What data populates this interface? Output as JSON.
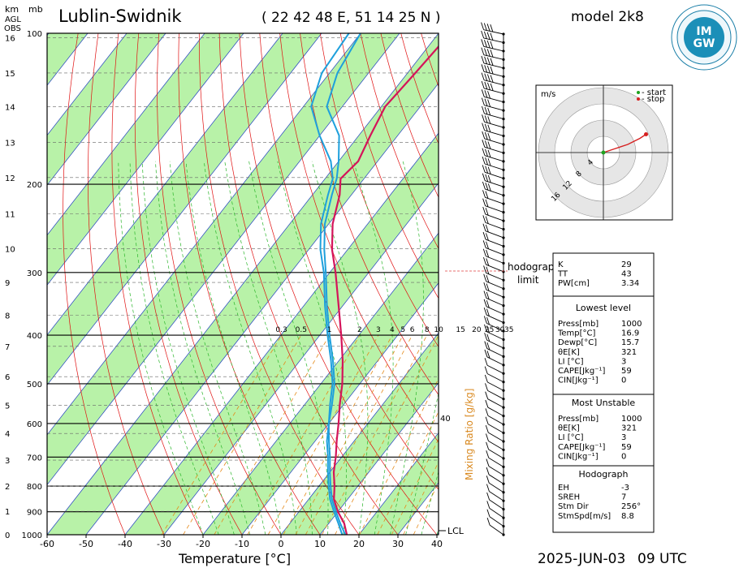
{
  "header": {
    "station": "Lublin-Swidnik",
    "coords": "( 22 42 48 E, 51 14 25 N )",
    "model": "model 2k8",
    "logo_text": "IMGW",
    "logo_ring": "INSTYTUT METEOROLOGII I GOSPODARKI WODNEJ · PAŃSTWOWY INSTYTUT BADAWCZY"
  },
  "axis_heads": {
    "km": "km",
    "mb": "mb",
    "agl": "AGL",
    "obs": "OBS"
  },
  "footer": {
    "date": "2025-JUN-03",
    "time": "09 UTC"
  },
  "chart_data": {
    "type": "line",
    "title": "Lublin-Swidnik",
    "xlabel": "Temperature [°C]",
    "ylabel_left": "km AGL OBS / mb",
    "x_ticks": [
      "-60",
      "-50",
      "-40",
      "-30",
      "-20",
      "-10",
      "0",
      "10",
      "20",
      "30",
      "40"
    ],
    "p_labels": [
      "100",
      "200",
      "300",
      "400",
      "500",
      "600",
      "700",
      "800",
      "900",
      "1000"
    ],
    "km_labels": [
      "0",
      "1",
      "2",
      "3",
      "4",
      "5",
      "6",
      "7",
      "8",
      "9",
      "10",
      "11",
      "12",
      "13",
      "14",
      "15",
      "16"
    ],
    "mixing_ratio_labels": [
      "0.3",
      "0.5",
      "1",
      "2",
      "3",
      "4",
      "5",
      "6",
      "8",
      "10",
      "15",
      "20",
      "25",
      "30",
      "35"
    ],
    "mixing_ratio_title": "Mixing Ratio [g/kg]",
    "right_mark": "40",
    "lcl_label": "LCL",
    "hodograph_limit_label": "hodograph\nlimit",
    "series": [
      {
        "name": "",
        "color": "#d4145a",
        "points": [
          [
            16.9,
            1000
          ],
          [
            14,
            950
          ],
          [
            10,
            900
          ],
          [
            6.5,
            850
          ],
          [
            4,
            800
          ],
          [
            1,
            750
          ],
          [
            -1.5,
            700
          ],
          [
            -4.5,
            650
          ],
          [
            -7.5,
            600
          ],
          [
            -11,
            550
          ],
          [
            -14.5,
            500
          ],
          [
            -19,
            450
          ],
          [
            -24.5,
            400
          ],
          [
            -31,
            350
          ],
          [
            -38.5,
            300
          ],
          [
            -44,
            270
          ],
          [
            -49,
            240
          ],
          [
            -53,
            210
          ],
          [
            -56,
            195
          ],
          [
            -55,
            180
          ],
          [
            -57,
            160
          ],
          [
            -59,
            140
          ],
          [
            -58,
            120
          ],
          [
            -57,
            100
          ]
        ]
      },
      {
        "name": "",
        "color": "#1ea0dc",
        "points": [
          [
            15.7,
            1000
          ],
          [
            12.5,
            950
          ],
          [
            9,
            900
          ],
          [
            5.5,
            850
          ],
          [
            2.5,
            800
          ],
          [
            -0.5,
            750
          ],
          [
            -3.5,
            700
          ],
          [
            -7,
            650
          ],
          [
            -10,
            600
          ],
          [
            -13,
            550
          ],
          [
            -16.5,
            500
          ],
          [
            -21.5,
            450
          ],
          [
            -27.5,
            400
          ],
          [
            -34,
            350
          ],
          [
            -41,
            300
          ],
          [
            -46,
            270
          ],
          [
            -51,
            240
          ],
          [
            -55,
            210
          ],
          [
            -57,
            195
          ],
          [
            -60,
            180
          ],
          [
            -65,
            160
          ],
          [
            -74,
            140
          ],
          [
            -78,
            120
          ],
          [
            -80,
            100
          ]
        ]
      },
      {
        "name": "",
        "color": "#1ea0dc",
        "points": [
          [
            16.5,
            1000
          ],
          [
            13,
            950
          ],
          [
            9.5,
            900
          ],
          [
            6,
            850
          ],
          [
            3,
            800
          ],
          [
            0,
            750
          ],
          [
            -3,
            700
          ],
          [
            -6.5,
            650
          ],
          [
            -10,
            600
          ],
          [
            -13.5,
            550
          ],
          [
            -17,
            500
          ],
          [
            -22,
            450
          ],
          [
            -28,
            400
          ],
          [
            -34.5,
            350
          ],
          [
            -41.5,
            300
          ],
          [
            -47,
            270
          ],
          [
            -52,
            240
          ],
          [
            -56,
            210
          ],
          [
            -58,
            195
          ],
          [
            -62,
            180
          ],
          [
            -70,
            160
          ],
          [
            -78,
            140
          ],
          [
            -82,
            120
          ],
          [
            -83,
            100
          ]
        ]
      }
    ],
    "hodograph": {
      "unit": "m/s",
      "ring_labels": [
        "4",
        "8",
        "12",
        "16"
      ],
      "legend": [
        {
          "label": "- start",
          "color": "#1fa31f"
        },
        {
          "label": "- stop",
          "color": "#d62020"
        }
      ],
      "points": [
        [
          0,
          0
        ],
        [
          3,
          1
        ],
        [
          6,
          2
        ],
        [
          9,
          3.5
        ],
        [
          10.5,
          4.5
        ]
      ]
    },
    "wind_barbs_count": 60
  },
  "indices": {
    "basic": [
      {
        "k": "K",
        "v": "29"
      },
      {
        "k": "TT",
        "v": "43"
      },
      {
        "k": "PW[cm]",
        "v": "3.34"
      }
    ],
    "lowest_title": "Lowest level",
    "lowest": [
      {
        "k": "Press[mb]",
        "v": "1000"
      },
      {
        "k": "Temp[°C]",
        "v": "16.9"
      },
      {
        "k": "Dewp[°C]",
        "v": "15.7"
      },
      {
        "k": "θE[K]",
        "v": "321"
      },
      {
        "k": "LI [°C]",
        "v": "3"
      },
      {
        "k": "CAPE[Jkg⁻¹]",
        "v": "59"
      },
      {
        "k": "CIN[Jkg⁻¹]",
        "v": "0"
      }
    ],
    "mu_title": "Most Unstable",
    "mu": [
      {
        "k": "Press[mb]",
        "v": "1000"
      },
      {
        "k": "θE[K]",
        "v": "321"
      },
      {
        "k": "LI [°C]",
        "v": "3"
      },
      {
        "k": "CAPE[Jkg⁻¹]",
        "v": "59"
      },
      {
        "k": "CIN[Jkg⁻¹]",
        "v": "0"
      }
    ],
    "hodo_title": "Hodograph",
    "hodo": [
      {
        "k": "EH",
        "v": "-3"
      },
      {
        "k": "SREH",
        "v": "7"
      },
      {
        "k": "Stm Dir",
        "v": "256°"
      },
      {
        "k": "StmSpd[m/s]",
        "v": "8.8"
      }
    ]
  }
}
